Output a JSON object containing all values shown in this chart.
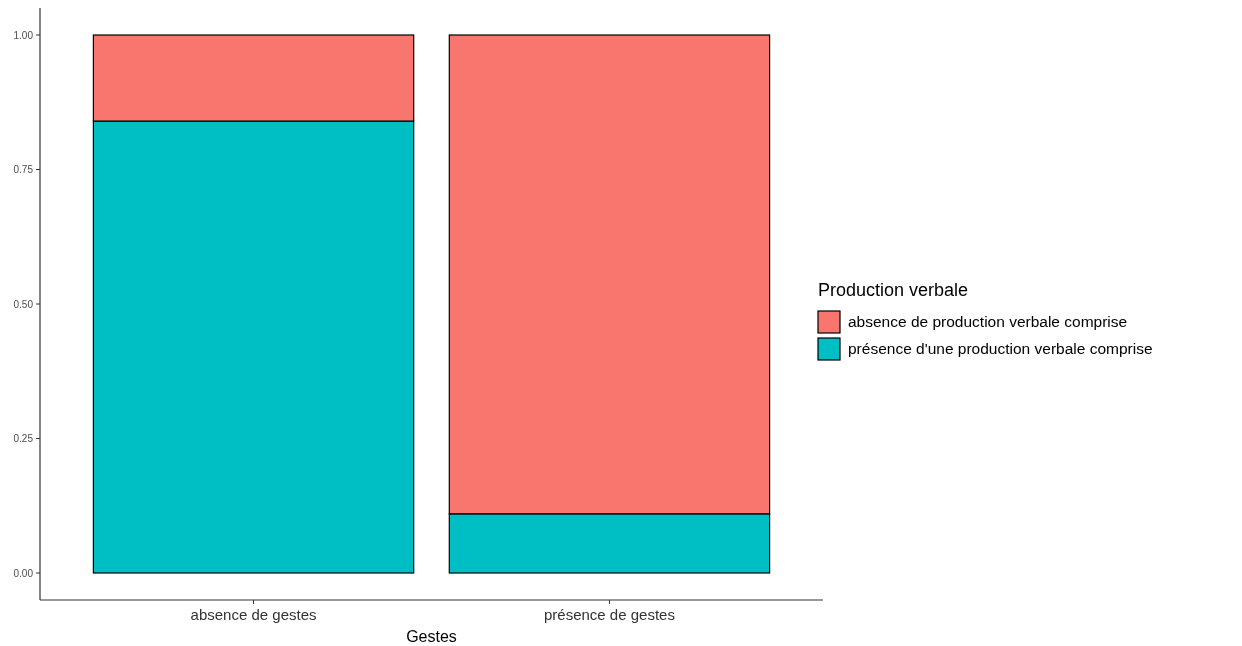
{
  "chart_data": {
    "type": "bar",
    "stacked": true,
    "xlabel": "Gestes",
    "legend_title": "Production verbale",
    "categories": [
      "absence de gestes",
      "présence de gestes"
    ],
    "series": [
      {
        "name": "présence d'une production verbale comprise",
        "color": "#00bfc4",
        "values": [
          0.84,
          0.11
        ]
      },
      {
        "name": "absence de production verbale comprise",
        "color": "#f8766d",
        "values": [
          0.16,
          0.89
        ]
      }
    ],
    "ylim": [
      0,
      1
    ],
    "yticks": [
      {
        "value": 0,
        "label": "0.00"
      },
      {
        "value": 0.25,
        "label": "0.25"
      },
      {
        "value": 0.5,
        "label": "0.50"
      },
      {
        "value": 0.75,
        "label": "0.75"
      },
      {
        "value": 1,
        "label": "1.00"
      }
    ],
    "grid": false,
    "legend": "right"
  }
}
